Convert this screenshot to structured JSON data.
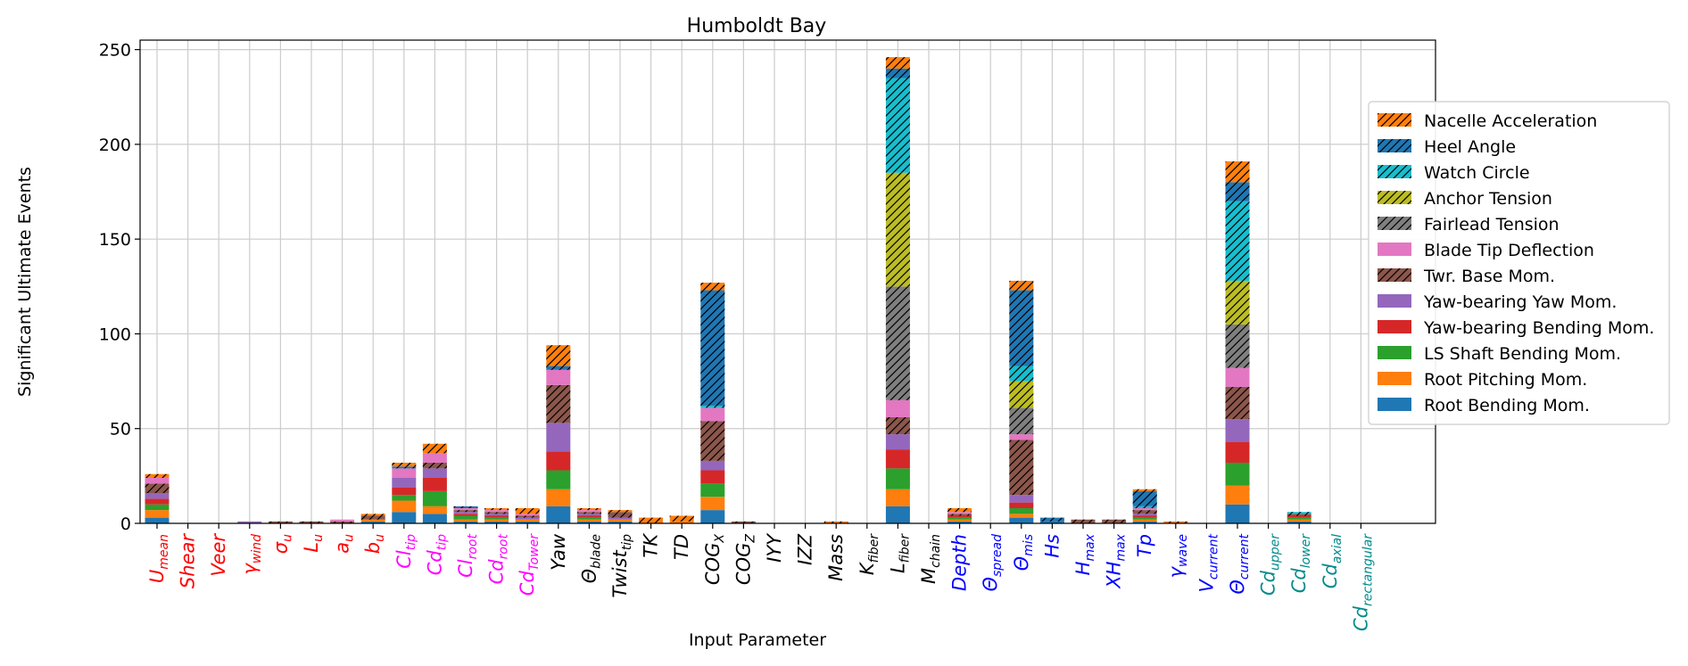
{
  "chart_data": {
    "type": "bar",
    "stacked": true,
    "title": "Humboldt Bay",
    "xlabel": "Input Parameter",
    "ylabel": "Significant Ultimate Events",
    "ylim": [
      0,
      255
    ],
    "yticks": [
      0,
      50,
      100,
      150,
      200,
      250
    ],
    "grid": true,
    "legend_position": "right",
    "categories": [
      {
        "base": "U",
        "sub": "mean",
        "color": "#ff0000"
      },
      {
        "base": "Shear",
        "sub": "",
        "color": "#ff0000"
      },
      {
        "base": "Veer",
        "sub": "",
        "color": "#ff0000"
      },
      {
        "base": "γ",
        "sub": "wind",
        "color": "#ff0000"
      },
      {
        "base": "σ",
        "sub": "u",
        "color": "#ff0000"
      },
      {
        "base": "L",
        "sub": "u",
        "color": "#ff0000"
      },
      {
        "base": "a",
        "sub": "u",
        "color": "#ff0000"
      },
      {
        "base": "b",
        "sub": "u",
        "color": "#ff0000"
      },
      {
        "base": "Cl",
        "sub": "tip",
        "color": "#ff00ff"
      },
      {
        "base": "Cd",
        "sub": "tip",
        "color": "#ff00ff"
      },
      {
        "base": "Cl",
        "sub": "root",
        "color": "#ff00ff"
      },
      {
        "base": "Cd",
        "sub": "root",
        "color": "#ff00ff"
      },
      {
        "base": "Cd",
        "sub": "Tower",
        "color": "#ff00ff"
      },
      {
        "base": "Yaw",
        "sub": "",
        "color": "#000000"
      },
      {
        "base": "Θ",
        "sub": "blade",
        "color": "#000000"
      },
      {
        "base": "Twist",
        "sub": "tip",
        "color": "#000000"
      },
      {
        "base": "TK",
        "sub": "",
        "color": "#000000"
      },
      {
        "base": "TD",
        "sub": "",
        "color": "#000000"
      },
      {
        "base": "COG",
        "sub": "X",
        "color": "#000000"
      },
      {
        "base": "COG",
        "sub": "Z",
        "color": "#000000"
      },
      {
        "base": "IYY",
        "sub": "",
        "color": "#000000"
      },
      {
        "base": "IZZ",
        "sub": "",
        "color": "#000000"
      },
      {
        "base": "Mass",
        "sub": "",
        "color": "#000000"
      },
      {
        "base": "K",
        "sub": "fiber",
        "color": "#000000"
      },
      {
        "base": "L",
        "sub": "fiber",
        "color": "#000000"
      },
      {
        "base": "M",
        "sub": "chain",
        "color": "#000000"
      },
      {
        "base": "Depth",
        "sub": "",
        "color": "#0000ff"
      },
      {
        "base": "Θ",
        "sub": "spread",
        "color": "#0000ff"
      },
      {
        "base": "Θ",
        "sub": "mis",
        "color": "#0000ff"
      },
      {
        "base": "Hs",
        "sub": "",
        "color": "#0000ff"
      },
      {
        "base": "H",
        "sub": "max",
        "color": "#0000ff"
      },
      {
        "base": "XH",
        "sub": "max",
        "color": "#0000ff"
      },
      {
        "base": "Tp",
        "sub": "",
        "color": "#0000ff"
      },
      {
        "base": "γ",
        "sub": "wave",
        "color": "#0000ff"
      },
      {
        "base": "V",
        "sub": "current",
        "color": "#0000ff"
      },
      {
        "base": "Θ",
        "sub": "current",
        "color": "#0000ff"
      },
      {
        "base": "Cd",
        "sub": "upper",
        "color": "#008b8b"
      },
      {
        "base": "Cd",
        "sub": "lower",
        "color": "#008b8b"
      },
      {
        "base": "Cd",
        "sub": "axial",
        "color": "#008b8b"
      },
      {
        "base": "Cd",
        "sub": "rectangular",
        "color": "#008b8b"
      }
    ],
    "series": [
      {
        "name": "Root Bending Mom.",
        "color": "#1f77b4",
        "hatch": false,
        "values": [
          3,
          0,
          0,
          0,
          0,
          0,
          0,
          1,
          6,
          5,
          1,
          1,
          1,
          9,
          1,
          1,
          0,
          0,
          7,
          0,
          0,
          0,
          0,
          0,
          9,
          0,
          1,
          0,
          3,
          1,
          0,
          0,
          1,
          0,
          0,
          10,
          0,
          1,
          0,
          0
        ]
      },
      {
        "name": "Root Pitching Mom.",
        "color": "#ff7f0e",
        "hatch": false,
        "values": [
          4,
          0,
          0,
          0,
          0,
          0,
          0,
          1,
          6,
          4,
          1,
          1,
          1,
          9,
          1,
          1,
          0,
          1,
          7,
          0,
          0,
          0,
          0,
          0,
          9,
          0,
          1,
          0,
          2,
          0,
          0,
          0,
          1,
          0,
          0,
          10,
          0,
          1,
          0,
          0
        ]
      },
      {
        "name": "LS Shaft Bending Mom.",
        "color": "#2ca02c",
        "hatch": false,
        "values": [
          3,
          0,
          0,
          0,
          0,
          0,
          0,
          0,
          3,
          8,
          2,
          1,
          0,
          10,
          1,
          0,
          0,
          0,
          7,
          0,
          0,
          0,
          0,
          0,
          11,
          0,
          1,
          0,
          3,
          0,
          0,
          0,
          1,
          0,
          0,
          12,
          0,
          1,
          0,
          0
        ]
      },
      {
        "name": "Yaw-bearing Bending Mom.",
        "color": "#d62728",
        "hatch": false,
        "values": [
          3,
          0,
          0,
          0,
          0,
          0,
          0,
          0,
          4,
          7,
          1,
          1,
          0,
          10,
          1,
          0,
          0,
          0,
          7,
          0,
          0,
          0,
          0,
          0,
          10,
          0,
          1,
          0,
          3,
          0,
          0,
          0,
          1,
          0,
          0,
          11,
          0,
          1,
          0,
          0
        ]
      },
      {
        "name": "Yaw-bearing Yaw Mom.",
        "color": "#9467bd",
        "hatch": false,
        "values": [
          3,
          0,
          0,
          1,
          0,
          0,
          0,
          0,
          5,
          5,
          1,
          1,
          1,
          15,
          1,
          1,
          0,
          0,
          5,
          0,
          0,
          0,
          0,
          0,
          8,
          0,
          0,
          0,
          4,
          0,
          0,
          0,
          1,
          0,
          0,
          12,
          0,
          0,
          0,
          0
        ]
      },
      {
        "name": "Twr. Base Mom.",
        "color": "#8c564b",
        "hatch": true,
        "values": [
          5,
          0,
          0,
          0,
          1,
          1,
          1,
          2,
          0,
          3,
          1,
          1,
          1,
          20,
          1,
          3,
          0,
          0,
          21,
          1,
          0,
          0,
          0,
          0,
          9,
          0,
          1,
          0,
          29,
          0,
          2,
          2,
          2,
          0,
          0,
          17,
          0,
          1,
          0,
          0
        ]
      },
      {
        "name": "Blade Tip Deflection",
        "color": "#e377c2",
        "hatch": false,
        "values": [
          3,
          0,
          0,
          0,
          0,
          0,
          1,
          0,
          5,
          5,
          1,
          1,
          1,
          8,
          1,
          0,
          0,
          0,
          7,
          0,
          0,
          0,
          0,
          0,
          9,
          0,
          1,
          0,
          3,
          0,
          0,
          0,
          1,
          0,
          0,
          10,
          0,
          0,
          0,
          0
        ]
      },
      {
        "name": "Fairlead Tension",
        "color": "#7f7f7f",
        "hatch": true,
        "values": [
          0,
          0,
          0,
          0,
          0,
          0,
          0,
          0,
          0,
          0,
          0,
          0,
          0,
          0,
          0,
          0,
          0,
          0,
          0,
          0,
          0,
          0,
          0,
          0,
          60,
          0,
          0,
          0,
          14,
          0,
          0,
          0,
          0,
          0,
          0,
          23,
          0,
          0,
          0,
          0
        ]
      },
      {
        "name": "Anchor Tension",
        "color": "#bcbd22",
        "hatch": true,
        "values": [
          0,
          0,
          0,
          0,
          0,
          0,
          0,
          0,
          0,
          0,
          0,
          0,
          0,
          0,
          0,
          0,
          0,
          0,
          0,
          0,
          0,
          0,
          0,
          0,
          60,
          0,
          0,
          0,
          14,
          0,
          0,
          0,
          0,
          0,
          0,
          23,
          0,
          0,
          0,
          0
        ]
      },
      {
        "name": "Watch Circle",
        "color": "#17becf",
        "hatch": true,
        "values": [
          0,
          0,
          0,
          0,
          0,
          0,
          0,
          0,
          0,
          0,
          0,
          0,
          0,
          0,
          0,
          0,
          0,
          0,
          1,
          0,
          0,
          0,
          0,
          0,
          50,
          0,
          0,
          0,
          8,
          0,
          0,
          0,
          1,
          0,
          0,
          42,
          0,
          1,
          0,
          0
        ]
      },
      {
        "name": "Heel Angle",
        "color": "#1f77b4",
        "hatch": true,
        "values": [
          0,
          0,
          0,
          0,
          0,
          0,
          0,
          0,
          1,
          0,
          1,
          0,
          0,
          2,
          0,
          0,
          0,
          0,
          61,
          0,
          0,
          0,
          0,
          0,
          5,
          0,
          0,
          0,
          40,
          2,
          0,
          0,
          8,
          0,
          0,
          10,
          0,
          0,
          0,
          0
        ]
      },
      {
        "name": "Nacelle Acceleration",
        "color": "#ff7f0e",
        "hatch": true,
        "values": [
          2,
          0,
          0,
          0,
          0,
          0,
          0,
          1,
          2,
          5,
          0,
          1,
          3,
          11,
          1,
          1,
          3,
          3,
          4,
          0,
          0,
          0,
          1,
          0,
          6,
          0,
          2,
          0,
          5,
          0,
          0,
          0,
          1,
          1,
          0,
          11,
          0,
          0,
          0,
          0
        ]
      }
    ]
  }
}
